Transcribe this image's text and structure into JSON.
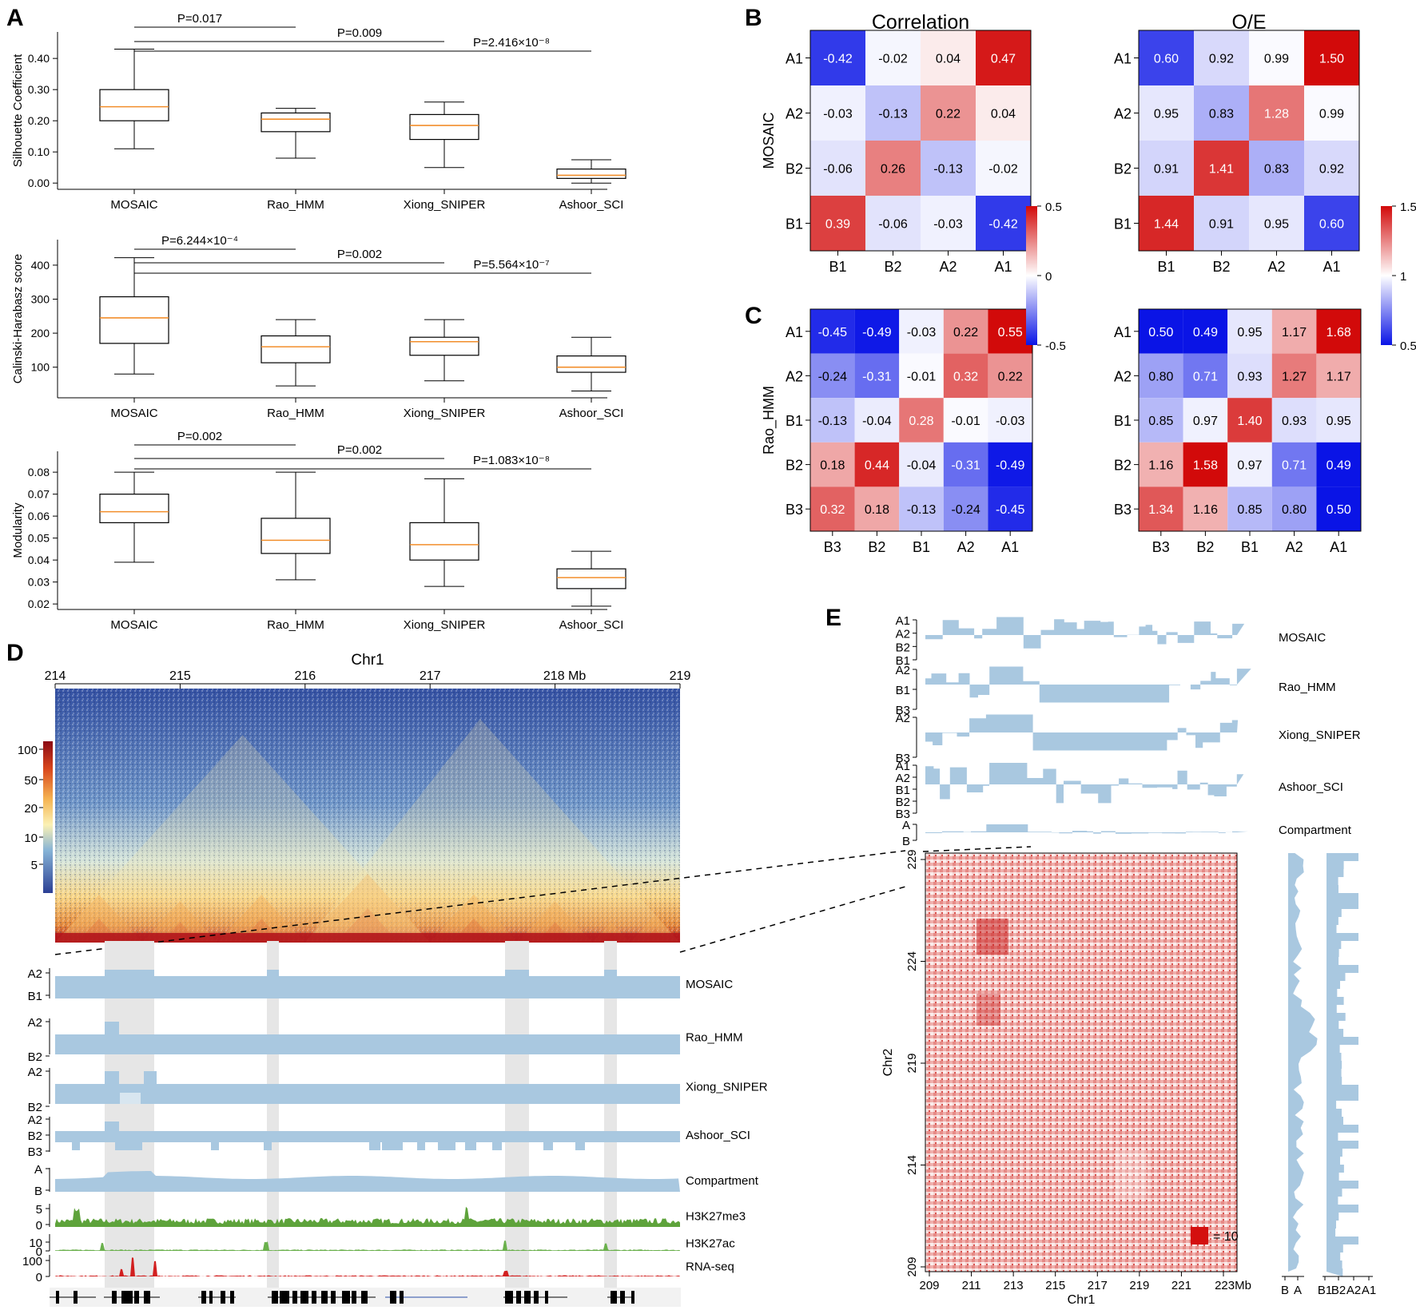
{
  "colors": {
    "median": "#f28e2b",
    "track": "#a9c8e0",
    "hic_low": "#3a4fa0",
    "hic_high": "#b00f12",
    "oe_red": "#dc1616",
    "h3k27me3": "#5ea33b",
    "h3k27ac": "#6ab04c",
    "rnaseq": "#d21f1f",
    "shade": "#e6e6e6",
    "heat_blue": "#0a14e6",
    "heat_red": "#d20a0a"
  },
  "panels": {
    "A": "A",
    "B": "B",
    "C": "C",
    "D": "D",
    "E": "E"
  },
  "chart_data": [
    {
      "id": "box_silhouette",
      "type": "box",
      "ylabel": "Silhouette Coefficient",
      "ylim": [
        -0.02,
        0.485
      ],
      "yticks": [
        "0.00",
        "0.10",
        "0.20",
        "0.30",
        "0.40"
      ],
      "categories": [
        "MOSAIC",
        "Rao_HMM",
        "Xiong_SNIPER",
        "Ashoor_SCI"
      ],
      "boxes": [
        {
          "min": 0.11,
          "q1": 0.2,
          "median": 0.245,
          "q3": 0.3,
          "max": 0.43
        },
        {
          "min": 0.08,
          "q1": 0.165,
          "median": 0.205,
          "q3": 0.225,
          "max": 0.24
        },
        {
          "min": 0.05,
          "q1": 0.14,
          "median": 0.185,
          "q3": 0.22,
          "max": 0.26
        },
        {
          "min": 0.0,
          "q1": 0.015,
          "median": 0.025,
          "q3": 0.045,
          "max": 0.075
        }
      ],
      "pvalues": [
        {
          "to": 1,
          "label": "P=0.017"
        },
        {
          "to": 2,
          "label": "P=0.009"
        },
        {
          "to": 3,
          "label": "P=2.416×10⁻⁸"
        }
      ]
    },
    {
      "id": "box_ch",
      "type": "box",
      "ylabel": "Calinski-Harabasz score",
      "ylim": [
        10,
        475
      ],
      "yticks": [
        "100",
        "200",
        "300",
        "400"
      ],
      "categories": [
        "MOSAIC",
        "Rao_HMM",
        "Xiong_SNIPER",
        "Ashoor_SCI"
      ],
      "boxes": [
        {
          "min": 80,
          "q1": 170,
          "median": 245,
          "q3": 307,
          "max": 422
        },
        {
          "min": 45,
          "q1": 113,
          "median": 160,
          "q3": 192,
          "max": 240
        },
        {
          "min": 60,
          "q1": 135,
          "median": 175,
          "q3": 188,
          "max": 240
        },
        {
          "min": 30,
          "q1": 85,
          "median": 100,
          "q3": 133,
          "max": 188
        }
      ],
      "pvalues": [
        {
          "to": 1,
          "label": "P=6.244×10⁻⁴"
        },
        {
          "to": 2,
          "label": "P=0.002"
        },
        {
          "to": 3,
          "label": "P=5.564×10⁻⁷"
        }
      ]
    },
    {
      "id": "box_modularity",
      "type": "box",
      "ylabel": "Modularity",
      "ylim": [
        0.0175,
        0.0895
      ],
      "yticks": [
        "0.02",
        "0.03",
        "0.04",
        "0.05",
        "0.06",
        "0.07",
        "0.08"
      ],
      "categories": [
        "MOSAIC",
        "Rao_HMM",
        "Xiong_SNIPER",
        "Ashoor_SCI"
      ],
      "boxes": [
        {
          "min": 0.039,
          "q1": 0.057,
          "median": 0.062,
          "q3": 0.07,
          "max": 0.08
        },
        {
          "min": 0.031,
          "q1": 0.043,
          "median": 0.049,
          "q3": 0.059,
          "max": 0.08
        },
        {
          "min": 0.028,
          "q1": 0.04,
          "median": 0.047,
          "q3": 0.057,
          "max": 0.077
        },
        {
          "min": 0.019,
          "q1": 0.027,
          "median": 0.032,
          "q3": 0.036,
          "max": 0.044
        }
      ],
      "pvalues": [
        {
          "to": 1,
          "label": "P=0.002"
        },
        {
          "to": 2,
          "label": "P=0.002"
        },
        {
          "to": 3,
          "label": "P=1.083×10⁻⁸"
        }
      ]
    },
    {
      "id": "mosaic_corr",
      "type": "heatmap",
      "title": "Correlation",
      "ylabel": "MOSAIC",
      "rows": [
        "A1",
        "A2",
        "B2",
        "B1"
      ],
      "cols": [
        "B1",
        "B2",
        "A2",
        "A1"
      ],
      "values": [
        [
          "-0.42",
          "-0.02",
          "0.04",
          "0.47"
        ],
        [
          "-0.03",
          "-0.13",
          "0.22",
          "0.04"
        ],
        [
          "-0.06",
          "0.26",
          "-0.13",
          "-0.02"
        ],
        [
          "0.39",
          "-0.06",
          "-0.03",
          "-0.42"
        ]
      ],
      "vmin": -0.5,
      "vcenter": 0,
      "vmax": 0.5
    },
    {
      "id": "mosaic_oe",
      "type": "heatmap",
      "title": "O/E",
      "rows": [
        "A1",
        "A2",
        "B2",
        "B1"
      ],
      "cols": [
        "B1",
        "B2",
        "A2",
        "A1"
      ],
      "values": [
        [
          "0.60",
          "0.92",
          "0.99",
          "1.50"
        ],
        [
          "0.95",
          "0.83",
          "1.28",
          "0.99"
        ],
        [
          "0.91",
          "1.41",
          "0.83",
          "0.92"
        ],
        [
          "1.44",
          "0.91",
          "0.95",
          "0.60"
        ]
      ],
      "vmin": 0.5,
      "vcenter": 1,
      "vmax": 1.5
    },
    {
      "id": "rao_corr",
      "type": "heatmap",
      "ylabel": "Rao_HMM",
      "rows": [
        "A1",
        "A2",
        "B1",
        "B2",
        "B3"
      ],
      "cols": [
        "B3",
        "B2",
        "B1",
        "A2",
        "A1"
      ],
      "values": [
        [
          "-0.45",
          "-0.49",
          "-0.03",
          "0.22",
          "0.55"
        ],
        [
          "-0.24",
          "-0.31",
          "-0.01",
          "0.32",
          "0.22"
        ],
        [
          "-0.13",
          "-0.04",
          "0.28",
          "-0.01",
          "-0.03"
        ],
        [
          "0.18",
          "0.44",
          "-0.04",
          "-0.31",
          "-0.49"
        ],
        [
          "0.32",
          "0.18",
          "-0.13",
          "-0.24",
          "-0.45"
        ]
      ],
      "vmin": -0.5,
      "vcenter": 0,
      "vmax": 0.5
    },
    {
      "id": "rao_oe",
      "type": "heatmap",
      "rows": [
        "A1",
        "A2",
        "B1",
        "B2",
        "B3"
      ],
      "cols": [
        "B3",
        "B2",
        "B1",
        "A2",
        "A1"
      ],
      "values": [
        [
          "0.50",
          "0.49",
          "0.95",
          "1.17",
          "1.68"
        ],
        [
          "0.80",
          "0.71",
          "0.93",
          "1.27",
          "1.17"
        ],
        [
          "0.85",
          "0.97",
          "1.40",
          "0.93",
          "0.95"
        ],
        [
          "1.16",
          "1.58",
          "0.97",
          "0.71",
          "0.49"
        ],
        [
          "1.34",
          "1.16",
          "0.85",
          "0.80",
          "0.50"
        ]
      ],
      "vmin": 0.5,
      "vcenter": 1,
      "vmax": 1.5
    },
    {
      "id": "colorbars",
      "corr_ticks": [
        "0.5",
        "0",
        "-0.5"
      ],
      "oe_ticks": [
        "1.5",
        "1",
        "0.5"
      ]
    },
    {
      "id": "hic_chr1",
      "type": "heatmap",
      "title": "Chr1",
      "x_ticks": [
        "214",
        "215",
        "216",
        "217",
        "218",
        "219"
      ],
      "x_unit": "Mb",
      "x_range": [
        214,
        219
      ],
      "colorbar_ticks": [
        "100",
        "50",
        "20",
        "10",
        "5"
      ],
      "tracks": [
        "MOSAIC",
        "Rao_HMM",
        "Xiong_SNIPER",
        "Ashoor_SCI",
        "Compartment",
        "H3K27me3",
        "H3K27ac",
        "RNA-seq"
      ],
      "track_ylabels": {
        "MOSAIC": [
          "A2",
          "B1"
        ],
        "Rao_HMM": [
          "A2",
          "B2"
        ],
        "Xiong_SNIPER": [
          "A2",
          "B2"
        ],
        "Ashoor_SCI": [
          "A2",
          "B2",
          "B3"
        ],
        "Compartment": [
          "A",
          "B"
        ],
        "H3K27me3": [
          "5",
          "0"
        ],
        "H3K27ac": [
          "10",
          "0"
        ],
        "RNA-seq": [
          "100",
          "0"
        ]
      }
    },
    {
      "id": "interchrom",
      "type": "heatmap",
      "xlabel": "Chr1",
      "ylabel": "Chr2",
      "x_ticks": [
        "209",
        "211",
        "213",
        "215",
        "217",
        "219",
        "221",
        "223"
      ],
      "x_unit": "Mb",
      "y_ticks": [
        "229",
        "224",
        "219",
        "214",
        "209"
      ],
      "legend": "= 10",
      "tracks": [
        "MOSAIC",
        "Rao_HMM",
        "Xiong_SNIPER",
        "Ashoor_SCI",
        "Compartment"
      ],
      "track_ylabels": {
        "MOSAIC": [
          "A1",
          "A2",
          "B2",
          "B1"
        ],
        "Rao_HMM": [
          "A2",
          "B1",
          "B3"
        ],
        "Xiong_SNIPER": [
          "A2",
          "B3"
        ],
        "Ashoor_SCI": [
          "A1",
          "A2",
          "B1",
          "B2",
          "B3"
        ],
        "Compartment": [
          "A",
          "B"
        ]
      },
      "side_labels": [
        "B",
        "A",
        "B1",
        "B2",
        "A2",
        "A1"
      ]
    }
  ]
}
